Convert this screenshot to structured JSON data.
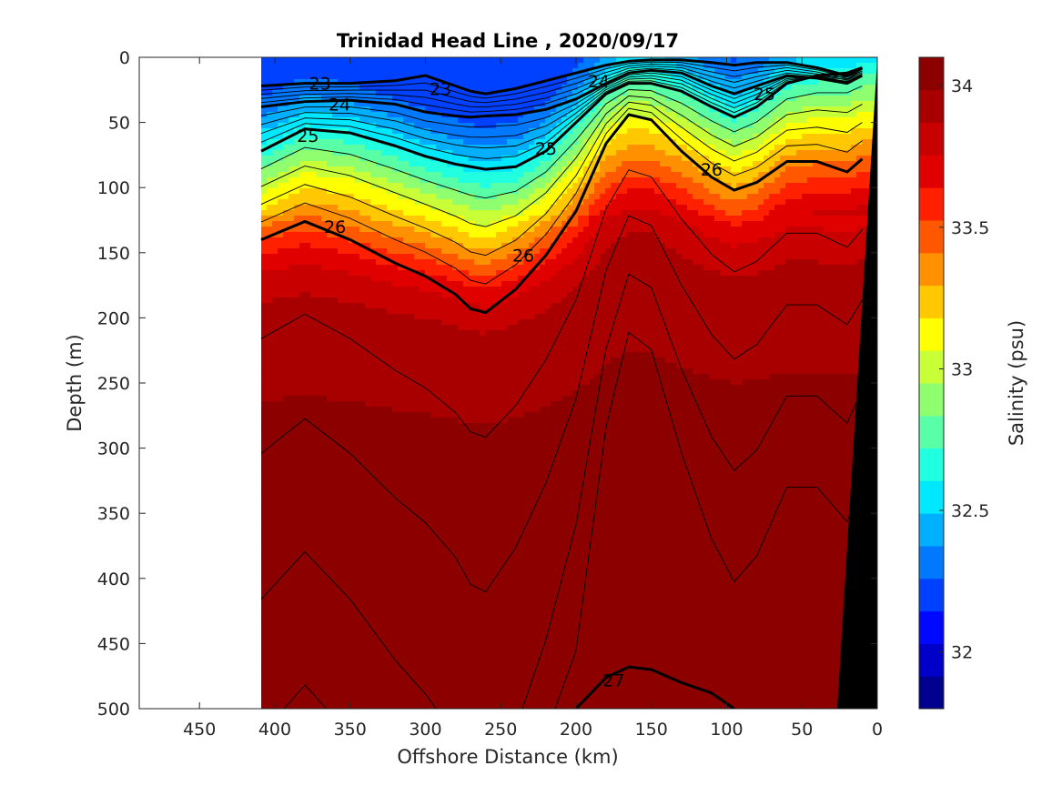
{
  "chart_data": {
    "type": "heatmap",
    "title": "Trinidad Head Line , 2020/09/17",
    "xlabel": "Offshore Distance (km)",
    "ylabel": "Depth (m)",
    "colorbar_label": "Salinity (psu)",
    "xlim": [
      490,
      0
    ],
    "ylim": [
      0,
      500
    ],
    "clim": [
      31.8,
      34.1
    ],
    "x_ticks": [
      "450",
      "400",
      "350",
      "300",
      "250",
      "200",
      "150",
      "100",
      "50",
      "0"
    ],
    "y_ticks": [
      "0",
      "50",
      "100",
      "150",
      "200",
      "250",
      "300",
      "350",
      "400",
      "450",
      "500"
    ],
    "colorbar_ticks": [
      "32",
      "32.5",
      "33",
      "33.5",
      "34"
    ],
    "data_extent_km": [
      409,
      0
    ],
    "colormap": [
      "#00008f",
      "#0000c8",
      "#0008ff",
      "#0040ff",
      "#0078ff",
      "#00b0ff",
      "#00e8ff",
      "#20ffdf",
      "#58ffa7",
      "#90ff6f",
      "#c8ff37",
      "#ffff00",
      "#ffc800",
      "#ff9000",
      "#ff5800",
      "#ff2000",
      "#e00000",
      "#c80000",
      "#a80000",
      "#8c0000"
    ],
    "salinity_profile": {
      "depth_m": [
        0,
        20,
        40,
        60,
        80,
        100,
        120,
        140,
        160,
        180,
        200,
        250,
        300,
        350,
        400,
        450,
        500
      ],
      "salinity_psu": [
        32.2,
        32.35,
        32.55,
        32.8,
        33.05,
        33.25,
        33.45,
        33.65,
        33.8,
        33.88,
        33.93,
        33.98,
        34.02,
        34.05,
        34.07,
        34.09,
        34.1
      ]
    },
    "isopycnal_depth_m": {
      "x_km": [
        409,
        380,
        350,
        320,
        300,
        280,
        270,
        260,
        240,
        220,
        200,
        180,
        165,
        150,
        130,
        110,
        95,
        80,
        60,
        40,
        20,
        10
      ],
      "sigma_23": [
        22,
        20,
        20,
        18,
        14,
        22,
        26,
        28,
        24,
        18,
        12,
        6,
        3,
        2,
        2,
        4,
        6,
        4,
        4,
        8,
        14,
        8
      ],
      "sigma_24": [
        38,
        34,
        33,
        36,
        42,
        45,
        46,
        45,
        44,
        40,
        32,
        20,
        12,
        10,
        12,
        22,
        28,
        22,
        14,
        16,
        20,
        14
      ],
      "sigma_25": [
        72,
        55,
        58,
        68,
        76,
        82,
        84,
        86,
        84,
        72,
        50,
        28,
        20,
        20,
        26,
        38,
        46,
        38,
        20,
        14,
        12,
        8
      ],
      "sigma_26": [
        140,
        126,
        140,
        158,
        168,
        182,
        193,
        196,
        178,
        152,
        118,
        66,
        44,
        48,
        72,
        92,
        102,
        96,
        80,
        80,
        88,
        78
      ],
      "sigma_27": [
        null,
        null,
        null,
        null,
        null,
        null,
        null,
        null,
        null,
        null,
        500,
        476,
        468,
        470,
        480,
        488,
        500,
        null,
        null,
        null,
        null,
        null
      ]
    },
    "contour_labels": [
      {
        "text": "23",
        "x_km": 370,
        "depth_m": 20
      },
      {
        "text": "23",
        "x_km": 290,
        "depth_m": 24
      },
      {
        "text": "24",
        "x_km": 185,
        "depth_m": 18
      },
      {
        "text": "24",
        "x_km": 357,
        "depth_m": 36
      },
      {
        "text": "25",
        "x_km": 378,
        "depth_m": 60
      },
      {
        "text": "25",
        "x_km": 220,
        "depth_m": 70
      },
      {
        "text": "25",
        "x_km": 75,
        "depth_m": 28
      },
      {
        "text": "26",
        "x_km": 110,
        "depth_m": 86
      },
      {
        "text": "26",
        "x_km": 360,
        "depth_m": 130
      },
      {
        "text": "26",
        "x_km": 235,
        "depth_m": 152
      },
      {
        "text": "27",
        "x_km": 175,
        "depth_m": 478
      }
    ]
  }
}
